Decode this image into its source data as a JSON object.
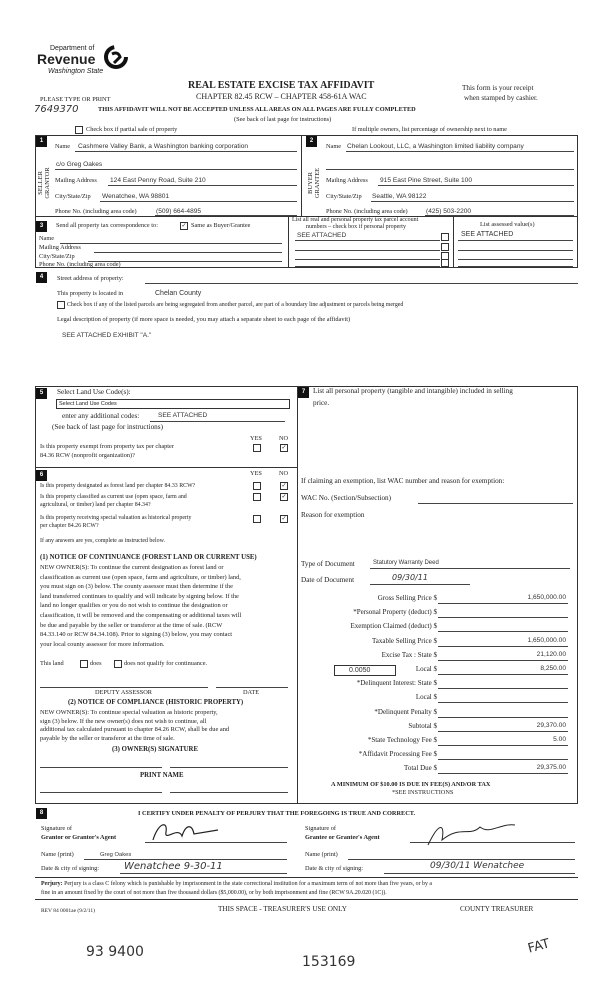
{
  "header": {
    "dept": "Department of",
    "agency": "Revenue",
    "state": "Washington State",
    "title": "REAL ESTATE EXCISE TAX AFFIDAVIT",
    "chapter": "CHAPTER 82.45 RCW – CHAPTER 458-61A WAC",
    "receipt1": "This form is your receipt",
    "receipt2": "when stamped by cashier.",
    "type_print": "PLEASE TYPE OR PRINT",
    "handwritten_no": "7649370",
    "warning": "THIS AFFIDAVIT WILL NOT BE ACCEPTED UNLESS ALL AREAS ON ALL PAGES ARE FULLY COMPLETED",
    "see_back": "(See back of last page for instructions)",
    "partial_sale": "Check box if partial sale of property",
    "multiple_owners": "If multiple owners, list percentage of ownership next to name"
  },
  "seller": {
    "num": "1",
    "side": "SELLER GRANTOR",
    "name_label": "Name",
    "name": "Cashmere Valley Bank, a Washington banking corporation",
    "name2": "c/o Greg Oakes",
    "addr_label": "Mailing Address",
    "addr": "124 East Penny Road, Suite 210",
    "city_label": "City/State/Zip",
    "city": "Wenatchee, WA 98801",
    "phone_label": "Phone No. (including area code)",
    "phone": "(509) 664-4895"
  },
  "buyer": {
    "num": "2",
    "side": "BUYER GRANTEE",
    "name_label": "Name",
    "name": "Chelan Lookout, LLC, a Washington limited liability company",
    "addr_label": "Mailing Address",
    "addr": "915 East Pine Street, Suite 100",
    "city_label": "City/State/Zip",
    "city": "Seattle, WA 98122",
    "phone_label": "Phone No. (including area code)",
    "phone": "(425) 503-2200"
  },
  "s3": {
    "num": "3",
    "send": "Send all property tax correspondence to:",
    "same": "Same as Buyer/Grantee",
    "same_checked": true,
    "name": "Name",
    "addr": "Mailing Address",
    "city": "City/State/Zip",
    "phone": "Phone No. (including area code)",
    "parcel_h1": "List all real and personal property tax parcel account",
    "parcel_h2": "numbers – check box if personal property",
    "assessed_h": "List assessed value(s)",
    "parcel1": "SEE ATTACHED",
    "assessed1": "SEE ATTACHED"
  },
  "s4": {
    "num": "4",
    "street": "Street address of property:",
    "located": "This property is located in",
    "county": "Chelan County",
    "segregated": "Check box if any of the listed parcels are being segregated from another parcel, are part of a boundary line adjustment or parcels being merged",
    "legal": "Legal description of property (if more space is needed, you may attach a separate sheet to each page of the affidavit)",
    "legal_value": "SEE ATTACHED EXHIBIT \"A.\""
  },
  "s5": {
    "num": "5",
    "select": "Select Land Use Code(s):",
    "dropdown": "Select Land Use Codes",
    "additional": "enter any additional codes:",
    "additional_value": "SEE ATTACHED",
    "see_back": "(See back of last page for instructions)",
    "yes": "YES",
    "no": "NO",
    "q1a": "Is this property exempt from property tax per chapter",
    "q1b": "84.36 RCW (nonprofit organization)?"
  },
  "s6": {
    "num": "6",
    "yes": "YES",
    "no": "NO",
    "q1": "Is this property designated as forest land per chapter 84.33 RCW?",
    "q2a": "Is this property classified as current use (open space, farm and",
    "q2b": "agricultural, or timber) land per chapter 84.34?",
    "q3a": "Is this property receiving special valuation as historical property",
    "q3b": "per chapter 84.26 RCW?",
    "if_yes": "If any answers are yes, complete as instructed below.",
    "n1_title": "(1) NOTICE OF CONTINUANCE  (FOREST LAND OR CURRENT USE)",
    "n1_lines": [
      "NEW OWNER(S): To continue the current designation as forest land or",
      "classification as current use (open space, farm and agriculture, or timber) land,",
      "you must sign on (3) below. The county assessor must then determine if the",
      "land transferred continues to qualify and will indicate by signing below. If the",
      "land no longer qualifies or you do not wish to continue the designation or",
      "classification, it will be removed and the compensating or additional taxes will",
      "be due and payable by the seller or transferor at the time of sale. (RCW",
      "84.33.140 or RCW 84.34.108). Prior to signing (3) below, you may contact",
      "your local county assessor for more information."
    ],
    "this_land": "This land",
    "does": "does",
    "does_not": "does not qualify for continuance.",
    "deputy": "DEPUTY ASSESSOR",
    "date": "DATE",
    "n2_title": "(2) NOTICE OF COMPLIANCE (HISTORIC PROPERTY)",
    "n2_lines": [
      "NEW OWNER(S): To continue special valuation as historic property,",
      "sign (3) below. If the new owner(s) does not wish to continue, all",
      "additional tax calculated pursuant to chapter 84.26 RCW, shall be due and",
      "payable by the seller or transferor at the time of sale."
    ],
    "owner_sig": "(3)  OWNER(S) SIGNATURE",
    "print_name": "PRINT NAME"
  },
  "s7": {
    "num": "7",
    "personal1": "List all  personal property (tangible and intangible) included in selling",
    "personal2": "price.",
    "exemption": "If claiming an exemption, list WAC number and reason for exemption:",
    "wac": "WAC No. (Section/Subsection)",
    "reason": "Reason for exemption",
    "doc_type_label": "Type of Document",
    "doc_type": "Statutory Warranty Deed",
    "doc_date_label": "Date of Document",
    "doc_date": "09/30/11",
    "lines": [
      {
        "label": "Gross Selling Price $",
        "value": "1,650,000.00"
      },
      {
        "label": "*Personal Property (deduct) $",
        "value": ""
      },
      {
        "label": "Exemption Claimed (deduct) $",
        "value": ""
      },
      {
        "label": "Taxable Selling Price $",
        "value": "1,650,000.00"
      },
      {
        "label": "Excise Tax : State $",
        "value": "21,120.00"
      },
      {
        "label": "Local $",
        "value": "8,250.00"
      },
      {
        "label": "*Delinquent Interest: State $",
        "value": ""
      },
      {
        "label": "Local $",
        "value": ""
      },
      {
        "label": "*Delinquent Penalty $",
        "value": ""
      },
      {
        "label": "Subtotal $",
        "value": "29,370.00"
      },
      {
        "label": "*State Technology Fee $",
        "value": "5.00"
      },
      {
        "label": "*Affidavit Processing Fee $",
        "value": ""
      },
      {
        "label": "Total Due $",
        "value": "29,375.00"
      }
    ],
    "local_rate": "0.0050",
    "minimum": "A MINIMUM OF $10.00 IS DUE IN FEE(S) AND/OR TAX",
    "see_instr": "*SEE INSTRUCTIONS"
  },
  "s8": {
    "num": "8",
    "certify": "I CERTIFY UNDER PENALTY OF PERJURY THAT THE FOREGOING IS TRUE AND CORRECT.",
    "sig_of": "Signature of",
    "grantor_agent": "Grantor or Grantor's Agent",
    "grantee_agent": "Grantee or Grantee's Agent",
    "name_print": "Name (print)",
    "grantor_name": "Greg Oakes",
    "date_city": "Date & city of signing:",
    "grantor_date_city": "Wenatchee  9-30-11",
    "grantee_date_city": "09/30/11  Wenatchee"
  },
  "footer": {
    "perjury_bold": "Perjury:",
    "perjury1": "Perjury is a class C felony which is punishable by imprisonment in the state correctional institution for a maximum term of not more than five years, or by a",
    "perjury2": "fine in an amount fixed by the court of not more than five thousand dollars ($5,000.00), or by both imprisonment and fine (RCW 9A.20.020 (1C)).",
    "rev": "REV 84 0001ae (9/2/11)",
    "treasurer_use": "THIS SPACE - TREASURER'S USE ONLY",
    "county_treasurer": "COUNTY TREASURER",
    "hw1": "93 9400",
    "hw2": "153169",
    "hw3": "FAT"
  }
}
